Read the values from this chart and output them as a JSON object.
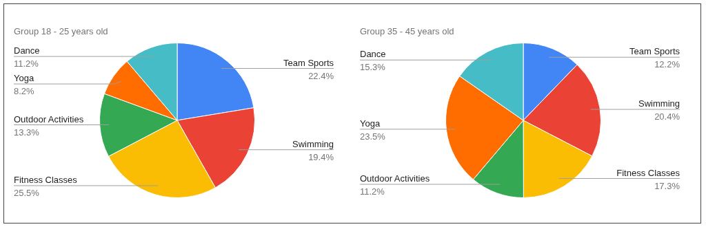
{
  "chart_data": [
    {
      "type": "pie",
      "title": "Group 18 - 25 years old",
      "categories": [
        "Team Sports",
        "Swimming",
        "Fitness Classes",
        "Outdoor Activities",
        "Yoga",
        "Dance"
      ],
      "values": [
        22.4,
        19.4,
        25.5,
        13.3,
        8.2,
        11.2
      ],
      "colors": [
        "#4285f4",
        "#ea4335",
        "#fbbc04",
        "#34a853",
        "#ff6d01",
        "#46bdc6"
      ],
      "value_labels": [
        "22.4%",
        "19.4%",
        "25.5%",
        "13.3%",
        "8.2%",
        "11.2%"
      ],
      "legend": false
    },
    {
      "type": "pie",
      "title": "Group 35 - 45 years old",
      "categories": [
        "Team Sports",
        "Swimming",
        "Fitness Classes",
        "Outdoor Activities",
        "Yoga",
        "Dance"
      ],
      "values": [
        12.2,
        20.4,
        17.3,
        11.2,
        23.5,
        15.3
      ],
      "colors": [
        "#4285f4",
        "#ea4335",
        "#fbbc04",
        "#34a853",
        "#ff6d01",
        "#46bdc6"
      ],
      "value_labels": [
        "12.2%",
        "20.4%",
        "17.3%",
        "11.2%",
        "23.5%",
        "15.3%"
      ],
      "legend": false
    }
  ]
}
